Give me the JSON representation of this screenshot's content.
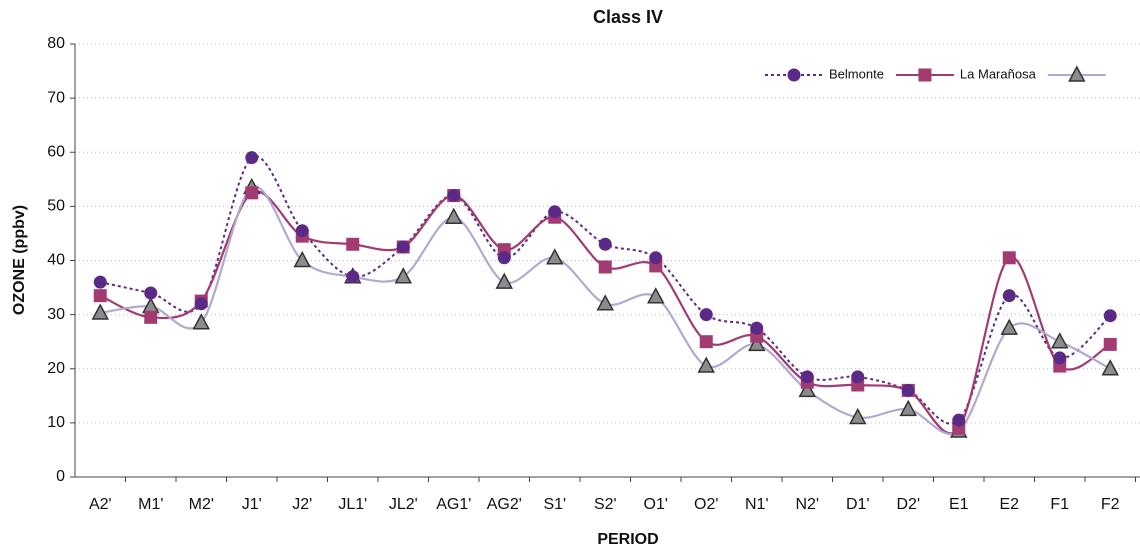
{
  "chart_data": {
    "type": "line",
    "title": "Class IV",
    "x_label": "PERIOD",
    "y_label": "OZONE (ppbv)",
    "categories": [
      "A2'",
      "M1'",
      "M2'",
      "J1'",
      "J2'",
      "JL1'",
      "JL2'",
      "AG1'",
      "AG2'",
      "S1'",
      "S2'",
      "O1'",
      "O2'",
      "N1'",
      "N2'",
      "D1'",
      "D2'",
      "E1",
      "E2",
      "F1",
      "F2"
    ],
    "series": [
      {
        "name": "Belmonte",
        "color": "#5b2a86",
        "marker": "circle",
        "line_style": "dotted",
        "values": [
          36,
          34,
          32,
          59,
          45.5,
          37,
          42.5,
          52,
          40.5,
          49,
          43,
          40.5,
          30,
          27.5,
          18.5,
          18.5,
          16,
          10.5,
          33.5,
          22,
          29.8
        ]
      },
      {
        "name": "La Marañosa",
        "color": "#a23b72",
        "marker": "square",
        "line_style": "solid",
        "values": [
          33.5,
          29.5,
          32.5,
          52.5,
          44.5,
          43,
          42.5,
          52,
          42,
          48,
          38.8,
          39,
          25,
          26,
          17.5,
          17,
          16,
          9,
          40.5,
          20.5,
          24.5
        ]
      },
      {
        "color": "#b3a9cf",
        "marker": "triangle",
        "line_style": "solid",
        "values": [
          30.3,
          31.5,
          28.5,
          53.5,
          40,
          37,
          37,
          48,
          36,
          40.5,
          32,
          33.3,
          20.5,
          24.5,
          16,
          11,
          12.5,
          8.5,
          27.5,
          25,
          20
        ]
      }
    ],
    "ylim": [
      0,
      80
    ],
    "yticks": [
      0,
      10,
      20,
      30,
      40,
      50,
      60,
      70,
      80
    ],
    "grid": true,
    "legend": "upper right"
  }
}
